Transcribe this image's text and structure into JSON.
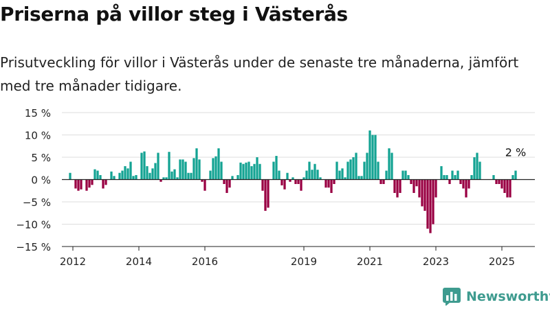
{
  "header": {
    "title": "Priserna på villor steg i Västerås",
    "subtitle": "Prisutveckling för villor i Västerås under de senaste tre månaderna, jämfört med tre månader tidigare."
  },
  "brand": {
    "name": "Newsworthy",
    "logo_icon": "bar-chart-icon"
  },
  "chart_data": {
    "type": "bar",
    "title": "Priserna på villor steg i Västerås",
    "xlabel": "",
    "ylabel": "",
    "ylim": [
      -15,
      15
    ],
    "yticks": [
      15,
      10,
      5,
      0,
      -5,
      -10,
      -15
    ],
    "ytick_labels": [
      "15 %",
      "10 %",
      "5 %",
      "0 %",
      "−5 %",
      "−10 %",
      "−15 %"
    ],
    "xticks": [
      "2012",
      "2014",
      "2016",
      "2019",
      "2021",
      "2023",
      "2025"
    ],
    "xlim": [
      "2011-09",
      "2026-01"
    ],
    "grid": true,
    "colors": {
      "positive": "#14a393",
      "negative": "#990043",
      "zero_line": "#222222",
      "grid": "#dddddd"
    },
    "annotation": {
      "text": "2 %",
      "date": "2025-06"
    },
    "start_month": "2011-12",
    "values": [
      1.5,
      0.0,
      -2.0,
      -2.5,
      -2.2,
      0.0,
      -2.5,
      -1.8,
      -1.2,
      2.3,
      2.0,
      1.0,
      -2.0,
      -1.2,
      0.0,
      1.8,
      0.8,
      0.0,
      1.5,
      2.0,
      3.0,
      2.5,
      4.0,
      0.8,
      1.0,
      0.0,
      6.0,
      6.3,
      3.0,
      1.5,
      2.5,
      3.7,
      6.0,
      -0.5,
      0.5,
      0.5,
      6.2,
      1.8,
      2.3,
      0.5,
      4.5,
      4.5,
      4.0,
      1.5,
      1.5,
      4.8,
      7.0,
      4.5,
      -0.5,
      -2.5,
      0.0,
      2.0,
      4.8,
      5.2,
      7.0,
      4.0,
      -1.0,
      -3.0,
      -1.8,
      0.8,
      0.0,
      1.0,
      3.8,
      3.5,
      3.8,
      4.0,
      3.0,
      3.5,
      5.0,
      3.5,
      -2.5,
      -7.0,
      -6.3,
      0.0,
      4.0,
      5.3,
      2.0,
      -1.3,
      -2.2,
      1.5,
      -0.5,
      0.5,
      -1.0,
      -1.0,
      -2.5,
      0.5,
      2.0,
      4.0,
      2.2,
      3.5,
      2.2,
      0.5,
      0.0,
      -1.8,
      -1.8,
      -3.0,
      -1.0,
      4.0,
      2.0,
      2.5,
      0.5,
      4.0,
      4.5,
      5.0,
      6.0,
      0.8,
      0.8,
      4.0,
      6.0,
      11.0,
      10.0,
      10.0,
      4.0,
      -1.0,
      -1.0,
      2.0,
      7.0,
      6.0,
      -3.0,
      -4.0,
      -3.0,
      2.0,
      2.0,
      1.0,
      -1.0,
      -3.0,
      -1.5,
      -4.0,
      -6.0,
      -7.0,
      -11.0,
      -12.0,
      -10.0,
      -4.0,
      0.0,
      3.0,
      1.0,
      1.0,
      -1.0,
      2.0,
      1.0,
      2.0,
      -1.0,
      -2.0,
      -4.0,
      -2.0,
      1.0,
      5.0,
      6.0,
      4.0,
      0.0,
      0.0,
      0.0,
      0.0,
      1.0,
      -1.0,
      -1.0,
      -2.0,
      -3.0,
      -4.0,
      -4.0,
      1.0,
      2.0
    ]
  }
}
